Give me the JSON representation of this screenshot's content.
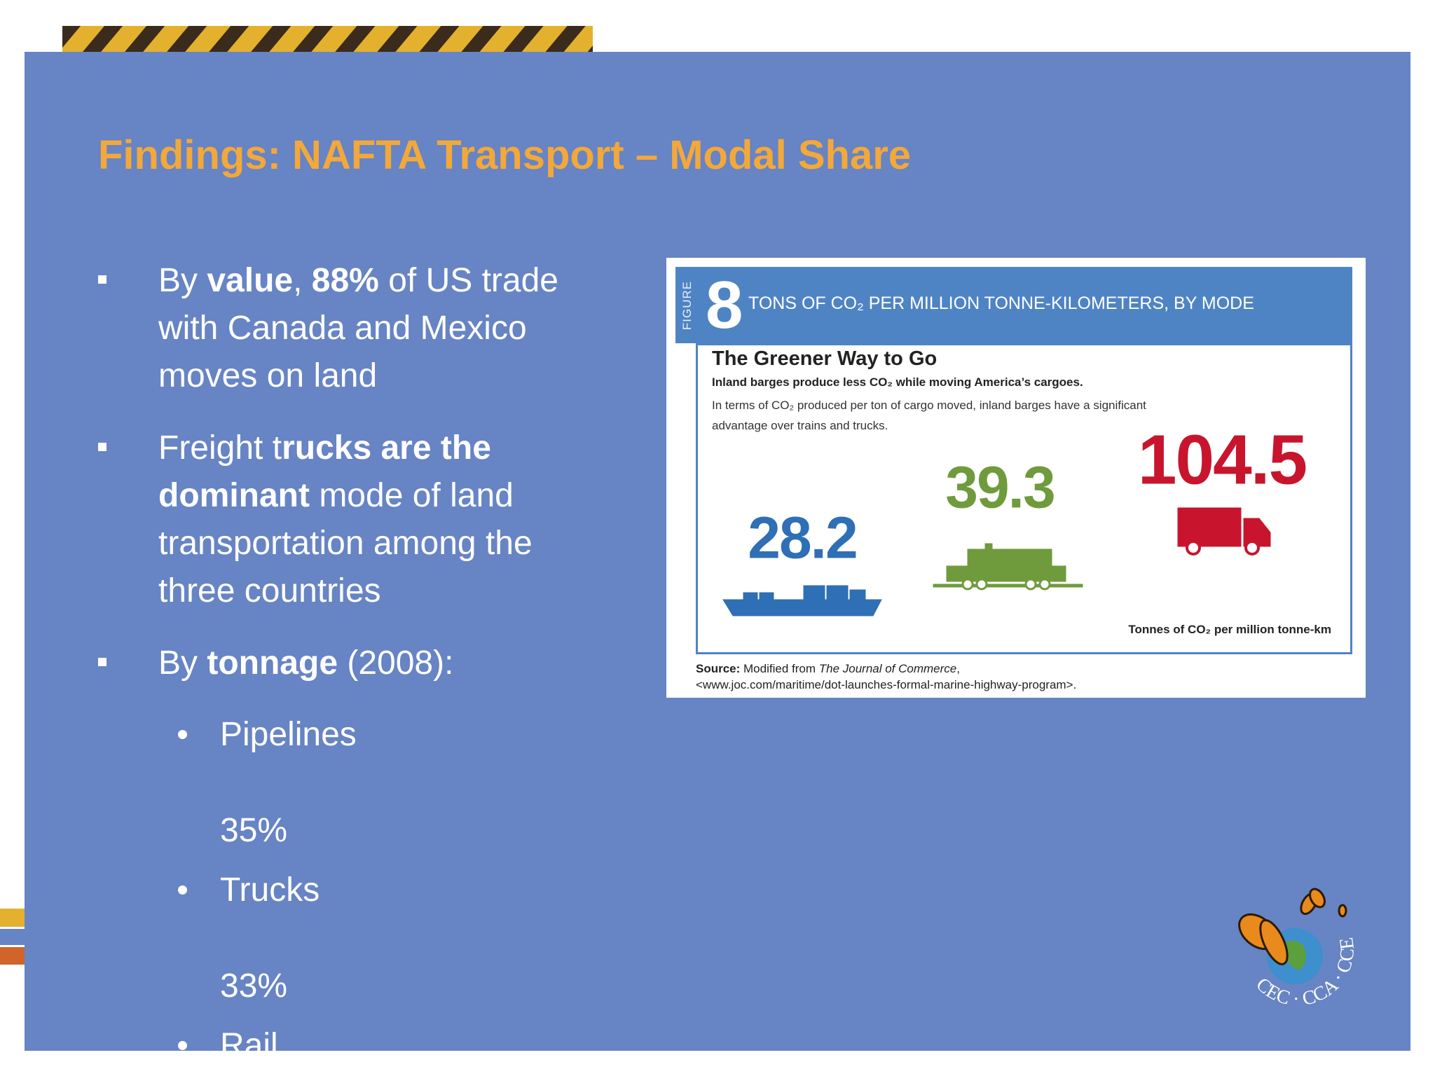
{
  "slide": {
    "title": "Findings: NAFTA Transport – Modal Share",
    "bullets": [
      {
        "parts": [
          {
            "text": "By ",
            "bold": false
          },
          {
            "text": "value",
            "bold": true
          },
          {
            "text": ", ",
            "bold": false
          },
          {
            "text": "88%",
            "bold": true
          },
          {
            "text": " of US trade with Canada and Mexico moves on land",
            "bold": false
          }
        ]
      },
      {
        "parts": [
          {
            "text": "Freight t",
            "bold": false
          },
          {
            "text": "rucks are the dominant",
            "bold": true
          },
          {
            "text": " mode of land transportation among the three countries",
            "bold": false
          }
        ]
      },
      {
        "parts": [
          {
            "text": "By ",
            "bold": false
          },
          {
            "text": "tonnage",
            "bold": true
          },
          {
            "text": " (2008):",
            "bold": false
          }
        ],
        "items": [
          {
            "label": "Pipelines",
            "share": "35%"
          },
          {
            "label": "Trucks",
            "share": "33%"
          },
          {
            "label": "Rail"
          }
        ]
      }
    ]
  },
  "figure": {
    "label": "FIGURE",
    "number": "8",
    "header": "TONS OF CO₂ PER MILLION TONNE-KILOMETERS, BY MODE",
    "title": "The Greener Way to Go",
    "subtitle": "Inland barges produce less CO₂ while moving America’s cargoes.",
    "description": "In terms of CO₂ produced per ton of cargo moved, inland barges have a significant advantage over trains and trucks.",
    "modes": [
      {
        "value": 28.2,
        "color": "#2f6fb5"
      },
      {
        "value": 39.3,
        "color": "#6f9b3c"
      },
      {
        "value": 104.5,
        "color": "#c8152d"
      }
    ],
    "unit": "Tonnes of CO₂ per million tonne-km",
    "source": {
      "label": "Source:",
      "text": " Modified from ",
      "journal": "The Journal of Commerce",
      "rest": ",",
      "url": "<www.joc.com/maritime/dot-launches-formal-marine-highway-program>."
    }
  },
  "logo": {
    "text": "CEC · CCA · CCE"
  }
}
